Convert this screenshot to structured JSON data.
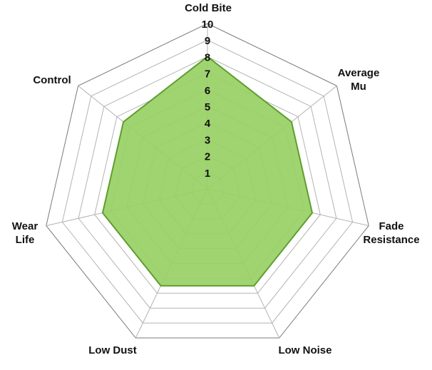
{
  "chart_data": {
    "type": "radar",
    "axes": [
      {
        "label": [
          "Cold Bite"
        ]
      },
      {
        "label": [
          "Average",
          "Mu"
        ]
      },
      {
        "label": [
          "Fade",
          "Resistance"
        ]
      },
      {
        "label": [
          "Low Noise"
        ]
      },
      {
        "label": [
          "Low Dust"
        ]
      },
      {
        "label": [
          "Wear",
          "Life"
        ]
      },
      {
        "label": [
          "Control"
        ]
      }
    ],
    "range": [
      0,
      10
    ],
    "tick_labels": [
      "1",
      "2",
      "3",
      "4",
      "5",
      "6",
      "7",
      "8",
      "9",
      "10"
    ],
    "series": [
      {
        "values": [
          8,
          6.5,
          6.5,
          6.5,
          6.5,
          6.5,
          6.5
        ],
        "color": "#98d065",
        "stroke": "#5e9e2e"
      }
    ],
    "grid": true,
    "legend": "none"
  }
}
